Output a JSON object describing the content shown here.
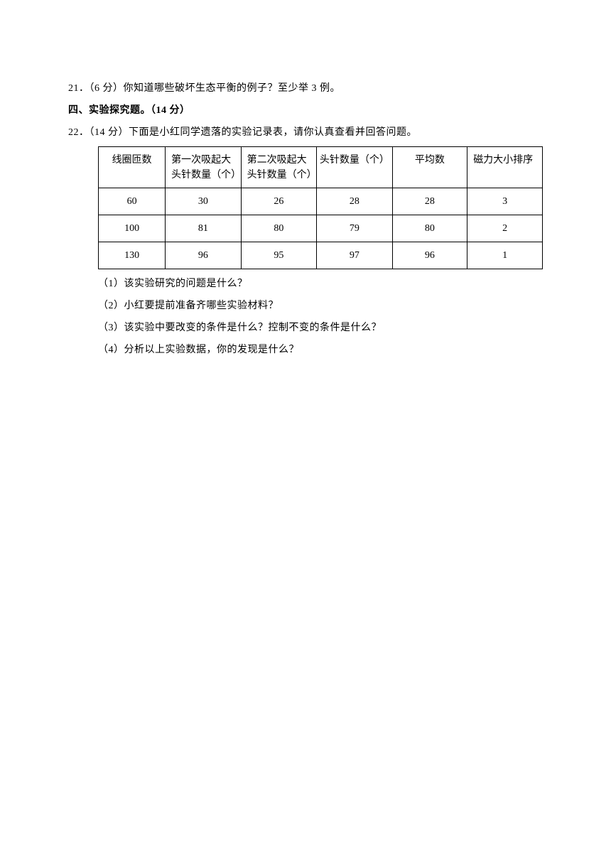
{
  "q21": {
    "label": "21．（6 分）你知道哪些破坏生态平衡的例子？至少举 3 例。"
  },
  "section4": {
    "title": "四、实验探究题。（14 分）"
  },
  "q22": {
    "label": "22．（14 分）下面是小红同学遗落的实验记录表，请你认真查看并回答问题。",
    "table": {
      "headers": {
        "c1": "线圈匝数",
        "c2a": "第一次吸起大",
        "c2b": "头针数量（个）",
        "c3a": "第二次吸起大",
        "c3b": "头针数量（个）",
        "c4": "头针数量（个）",
        "c5": "平均数",
        "c6": "磁力大小排序"
      },
      "rows": [
        {
          "c1": "60",
          "c2": "30",
          "c3": "26",
          "c4": "28",
          "c5": "28",
          "c6": "3"
        },
        {
          "c1": "100",
          "c2": "81",
          "c3": "80",
          "c4": "79",
          "c5": "80",
          "c6": "2"
        },
        {
          "c1": "130",
          "c2": "96",
          "c3": "95",
          "c4": "97",
          "c5": "96",
          "c6": "1"
        }
      ]
    },
    "sub": {
      "s1": "（1）该实验研究的问题是什么？",
      "s2": "（2）小红要提前准备齐哪些实验材料？",
      "s3": "（3）该实验中要改变的条件是什么？控制不变的条件是什么？",
      "s4": "（4）分析以上实验数据，你的发现是什么？"
    }
  }
}
